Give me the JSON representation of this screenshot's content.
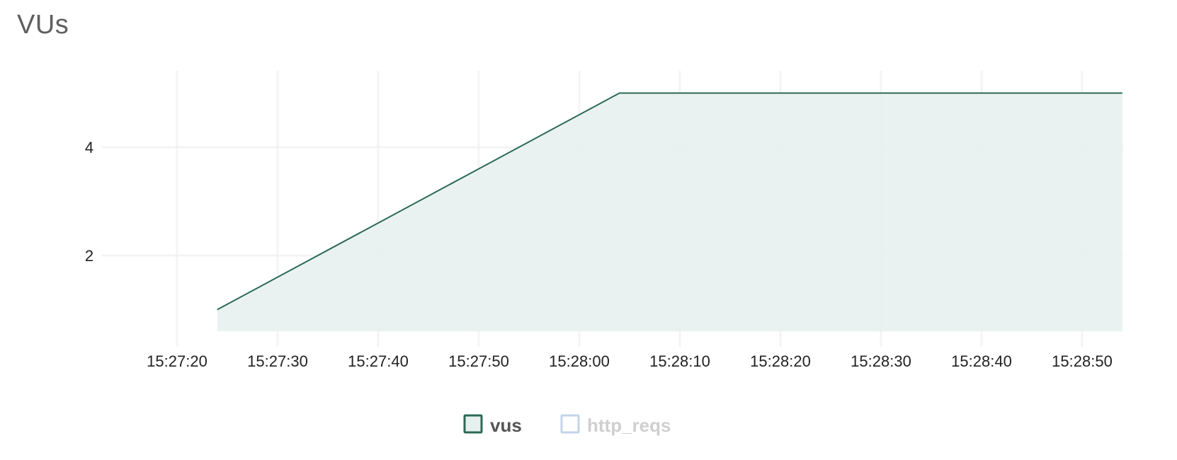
{
  "header": {
    "title": "VUs"
  },
  "chart_data": {
    "type": "area",
    "title": "VUs",
    "xlabel": "",
    "ylabel": "",
    "x_ticks": [
      "15:27:20",
      "15:27:30",
      "15:27:40",
      "15:27:50",
      "15:28:00",
      "15:28:10",
      "15:28:20",
      "15:28:30",
      "15:28:40",
      "15:28:50"
    ],
    "y_ticks": [
      2,
      4
    ],
    "xlim": [
      "15:27:20",
      "15:28:54"
    ],
    "ylim": [
      0.6,
      5.4
    ],
    "grid": true,
    "legend_position": "bottom",
    "series": [
      {
        "name": "vus",
        "color": "#2a6a55",
        "fill": "#e6f0ee",
        "active": true,
        "points": [
          {
            "x": "15:27:24",
            "y": 1
          },
          {
            "x": "15:28:04",
            "y": 5
          },
          {
            "x": "15:28:54",
            "y": 5
          }
        ]
      },
      {
        "name": "http_reqs",
        "color": "#c3d3ea",
        "fill": "#ffffff",
        "active": false,
        "points": []
      }
    ]
  }
}
